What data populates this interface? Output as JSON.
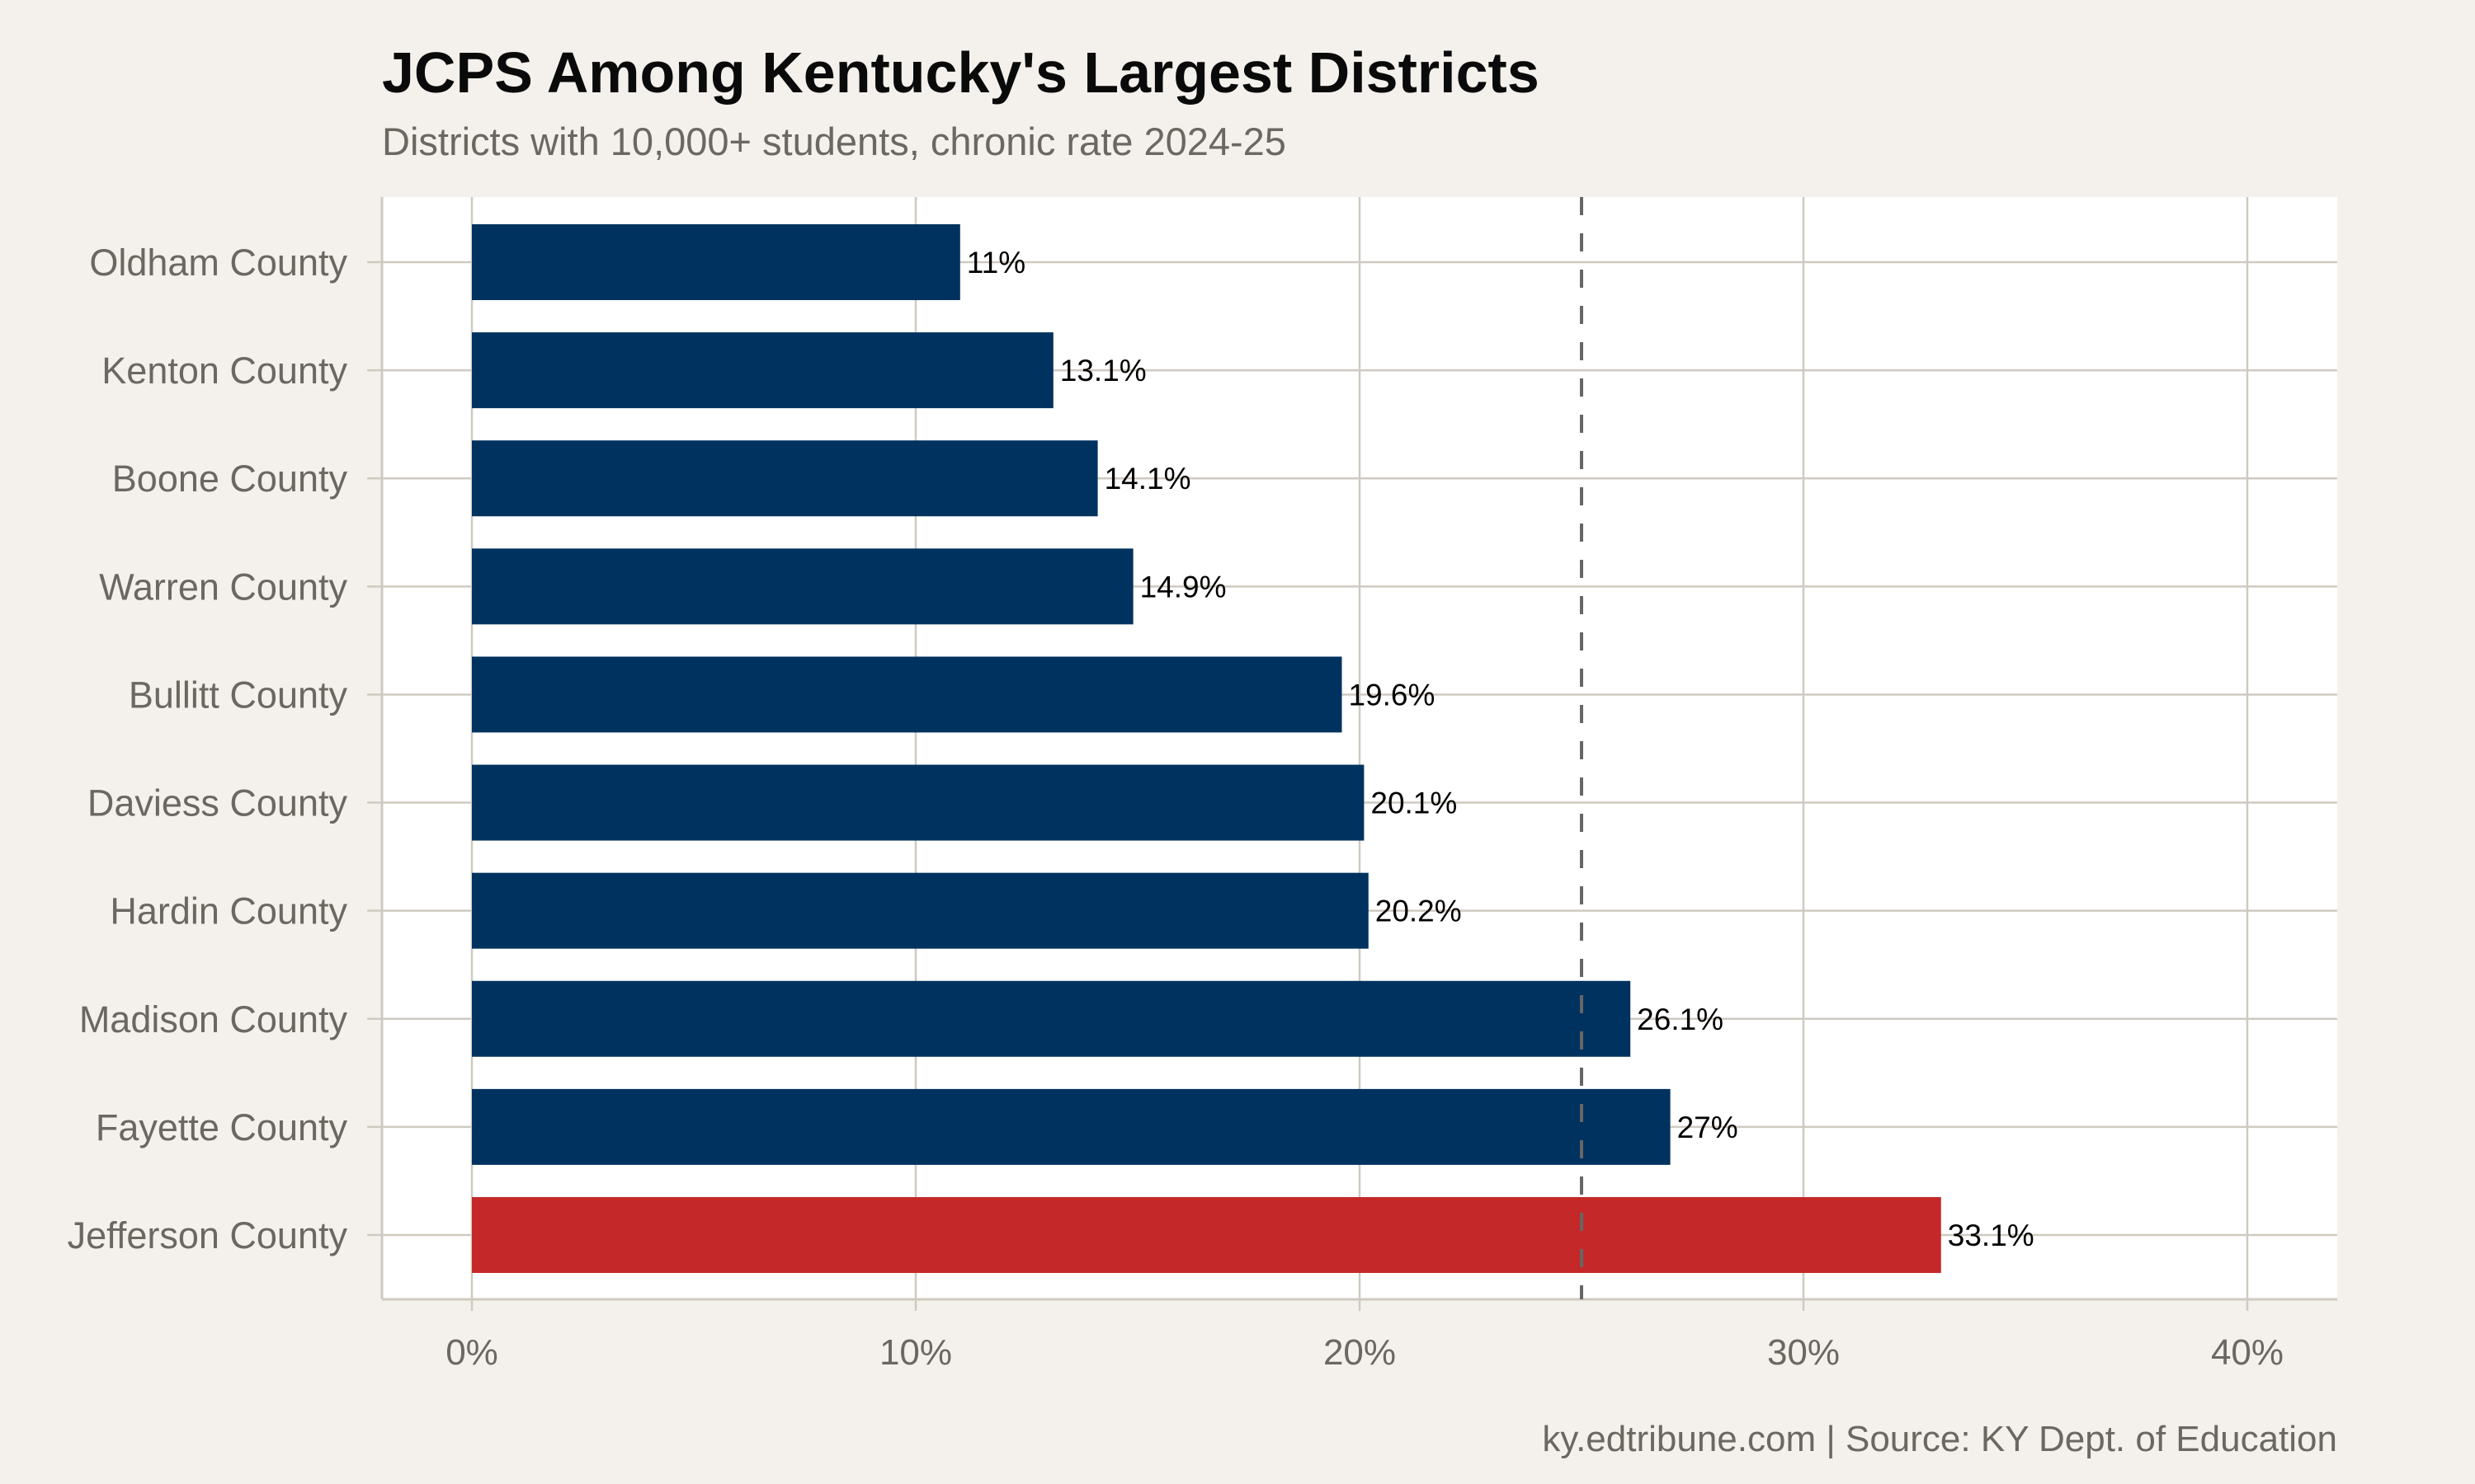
{
  "chart_data": {
    "type": "bar",
    "orientation": "horizontal",
    "title": "JCPS Among Kentucky's Largest Districts",
    "subtitle": "Districts with 10,000+ students, chronic rate 2024-25",
    "caption": "ky.edtribune.com | Source: KY Dept. of Education",
    "xlabel": "",
    "ylabel": "",
    "xlim": [
      0,
      40
    ],
    "x_ticks": [
      "0%",
      "10%",
      "20%",
      "30%",
      "40%"
    ],
    "x_tick_values": [
      0,
      10,
      20,
      30,
      40
    ],
    "grid": true,
    "categories": [
      "Oldham County",
      "Kenton County",
      "Boone County",
      "Warren County",
      "Bullitt County",
      "Daviess County",
      "Hardin County",
      "Madison County",
      "Fayette County",
      "Jefferson County"
    ],
    "values": [
      11,
      13.1,
      14.1,
      14.9,
      19.6,
      20.1,
      20.2,
      26.1,
      27,
      33.1
    ],
    "data_labels": [
      "11%",
      "13.1%",
      "14.1%",
      "14.9%",
      "19.6%",
      "20.1%",
      "20.2%",
      "26.1%",
      "27%",
      "33.1%"
    ],
    "highlight": "Jefferson County",
    "reference_line": {
      "value": 25,
      "style": "dashed"
    },
    "colors": {
      "bar": "#00325f",
      "highlight": "#c42828",
      "reference_line": "#666666",
      "grid": "#cfcac0",
      "panel": "#ffffff",
      "background": "#f4f1ec"
    }
  }
}
